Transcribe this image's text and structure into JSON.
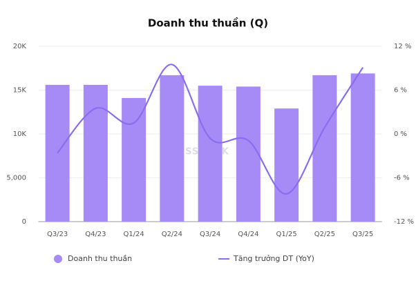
{
  "chart_data": {
    "type": "bar",
    "title": "Doanh thu thuần (Q)",
    "watermark": "SSTOCK",
    "categories": [
      "Q3/23",
      "Q4/23",
      "Q1/24",
      "Q2/24",
      "Q3/24",
      "Q4/24",
      "Q1/25",
      "Q2/25",
      "Q3/25"
    ],
    "series": [
      {
        "name": "Doanh thu thuần",
        "type": "bar",
        "color": "#a68af6",
        "values": [
          15600,
          15600,
          14100,
          16700,
          15500,
          15400,
          12900,
          16700,
          16900
        ]
      },
      {
        "name": "Tăng trưởng DT (YoY)",
        "type": "line",
        "axis": "y2",
        "color": "#8a6cf0",
        "values": [
          -2.6,
          3.5,
          1.5,
          9.5,
          -0.6,
          -0.9,
          -8.2,
          0.9,
          9.1
        ]
      }
    ],
    "ylim": [
      0,
      20000
    ],
    "yticks": [
      0,
      {
        "value": 5000,
        "label": "5,000"
      },
      {
        "value": 10000,
        "label": "10K"
      },
      {
        "value": 15000,
        "label": "15K"
      },
      {
        "value": 20000,
        "label": "20K"
      }
    ],
    "y2lim": [
      -12,
      12
    ],
    "y2ticks": [
      {
        "value": -12,
        "label": "-12 %"
      },
      {
        "value": -6,
        "label": "-6 %"
      },
      {
        "value": 0,
        "label": "0 %"
      },
      {
        "value": 6,
        "label": "6 %"
      },
      {
        "value": 12,
        "label": "12 %"
      }
    ],
    "grid": true
  }
}
